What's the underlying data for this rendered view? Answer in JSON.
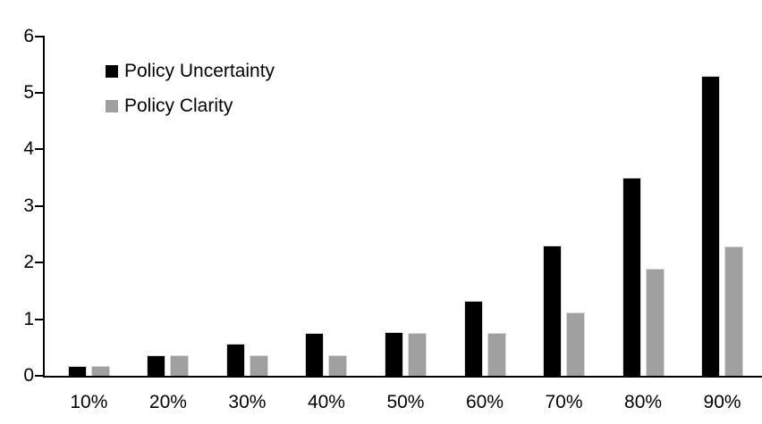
{
  "chart_data": {
    "type": "bar",
    "title": "",
    "xlabel": "",
    "ylabel": "",
    "categories": [
      "10%",
      "20%",
      "30%",
      "40%",
      "50%",
      "60%",
      "70%",
      "80%",
      "90%"
    ],
    "series": [
      {
        "name": "Policy Uncertainty",
        "color": "#000000",
        "values": [
          0.18,
          0.37,
          0.56,
          0.76,
          0.77,
          1.33,
          2.3,
          3.5,
          5.3
        ]
      },
      {
        "name": "Policy Clarity",
        "color": "#a0a0a0",
        "values": [
          0.17,
          0.36,
          0.36,
          0.37,
          0.76,
          0.76,
          1.12,
          1.89,
          2.29
        ]
      }
    ],
    "ylim": [
      0,
      6
    ],
    "yticks": [
      0,
      1,
      2,
      3,
      4,
      5,
      6
    ],
    "grid": false,
    "legend_position": "top-left",
    "axis_color": "#000000"
  }
}
